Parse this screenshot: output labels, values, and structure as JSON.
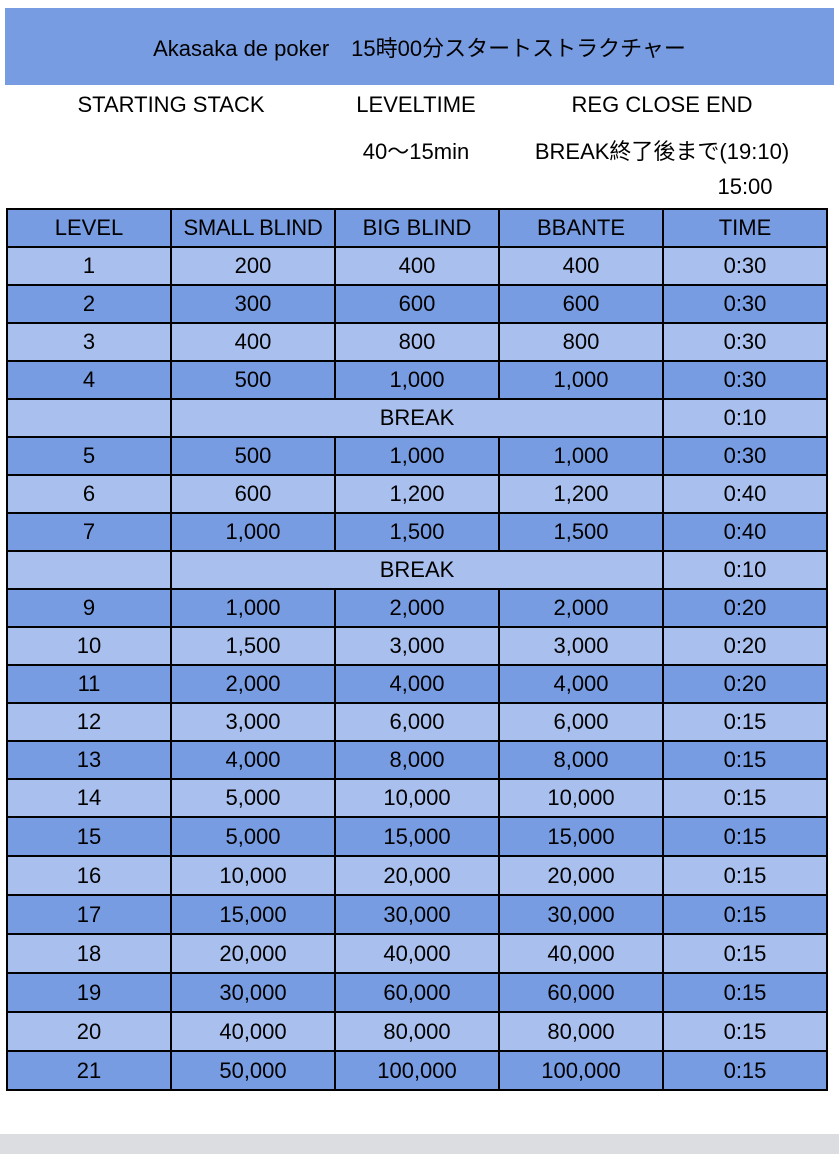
{
  "title": "Akasaka de poker　15時00分スタートストラクチャー",
  "info": {
    "starting_stack_label": "STARTING STACK",
    "leveltime_label": "LEVELTIME",
    "leveltime_value": "40〜15min",
    "reg_close_label": "REG CLOSE END",
    "reg_close_value": "BREAK終了後まで(19:10)",
    "start_time": "15:00"
  },
  "table": {
    "headers": [
      "LEVEL",
      "SMALL BLIND",
      "BIG BLIND",
      "BBANTE",
      "TIME"
    ],
    "rows": [
      {
        "level": "1",
        "sb": "200",
        "bb": "400",
        "ante": "400",
        "time": "0:30"
      },
      {
        "level": "2",
        "sb": "300",
        "bb": "600",
        "ante": "600",
        "time": "0:30"
      },
      {
        "level": "3",
        "sb": "400",
        "bb": "800",
        "ante": "800",
        "time": "0:30"
      },
      {
        "level": "4",
        "sb": "500",
        "bb": "1,000",
        "ante": "1,000",
        "time": "0:30"
      },
      {
        "break": "BREAK",
        "time": "0:10"
      },
      {
        "level": "5",
        "sb": "500",
        "bb": "1,000",
        "ante": "1,000",
        "time": "0:30"
      },
      {
        "level": "6",
        "sb": "600",
        "bb": "1,200",
        "ante": "1,200",
        "time": "0:40"
      },
      {
        "level": "7",
        "sb": "1,000",
        "bb": "1,500",
        "ante": "1,500",
        "time": "0:40"
      },
      {
        "break": "BREAK",
        "time": "0:10"
      },
      {
        "level": "9",
        "sb": "1,000",
        "bb": "2,000",
        "ante": "2,000",
        "time": "0:20"
      },
      {
        "level": "10",
        "sb": "1,500",
        "bb": "3,000",
        "ante": "3,000",
        "time": "0:20"
      },
      {
        "level": "11",
        "sb": "2,000",
        "bb": "4,000",
        "ante": "4,000",
        "time": "0:20"
      },
      {
        "level": "12",
        "sb": "3,000",
        "bb": "6,000",
        "ante": "6,000",
        "time": "0:15"
      },
      {
        "level": "13",
        "sb": "4,000",
        "bb": "8,000",
        "ante": "8,000",
        "time": "0:15"
      },
      {
        "level": "14",
        "sb": "5,000",
        "bb": "10,000",
        "ante": "10,000",
        "time": "0:15"
      },
      {
        "level": "15",
        "sb": "5,000",
        "bb": "15,000",
        "ante": "15,000",
        "time": "0:15"
      },
      {
        "level": "16",
        "sb": "10,000",
        "bb": "20,000",
        "ante": "20,000",
        "time": "0:15"
      },
      {
        "level": "17",
        "sb": "15,000",
        "bb": "30,000",
        "ante": "30,000",
        "time": "0:15"
      },
      {
        "level": "18",
        "sb": "20,000",
        "bb": "40,000",
        "ante": "40,000",
        "time": "0:15"
      },
      {
        "level": "19",
        "sb": "30,000",
        "bb": "60,000",
        "ante": "60,000",
        "time": "0:15"
      },
      {
        "level": "20",
        "sb": "40,000",
        "bb": "80,000",
        "ante": "80,000",
        "time": "0:15"
      },
      {
        "level": "21",
        "sb": "50,000",
        "bb": "100,000",
        "ante": "100,000",
        "time": "0:15"
      }
    ]
  },
  "colors": {
    "dark_row": "#779ce2",
    "light_row": "#a9c0ef"
  }
}
